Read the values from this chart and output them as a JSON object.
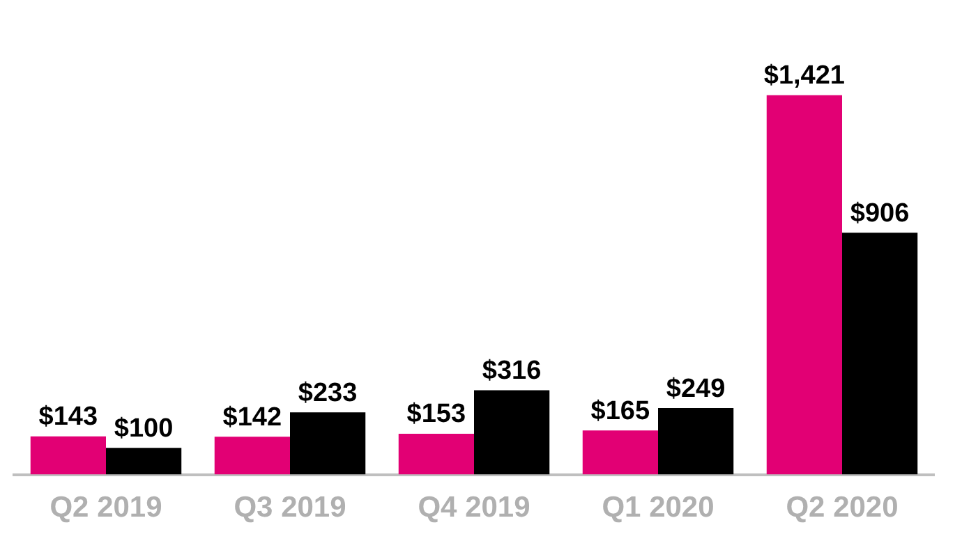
{
  "chart_data": {
    "type": "bar",
    "categories": [
      "Q2 2019",
      "Q3 2019",
      "Q4 2019",
      "Q1 2020",
      "Q2 2020"
    ],
    "series": [
      {
        "color": "#e20074",
        "values": [
          143,
          142,
          153,
          165,
          1421
        ],
        "value_labels": [
          "$143",
          "$142",
          "$153",
          "$165",
          "$1,421"
        ]
      },
      {
        "color": "#000000",
        "values": [
          100,
          233,
          316,
          249,
          906
        ],
        "value_labels": [
          "$100",
          "$233",
          "$316",
          "$249",
          "$906"
        ]
      }
    ],
    "grid": false,
    "legend": false,
    "tick_labels": "x"
  }
}
